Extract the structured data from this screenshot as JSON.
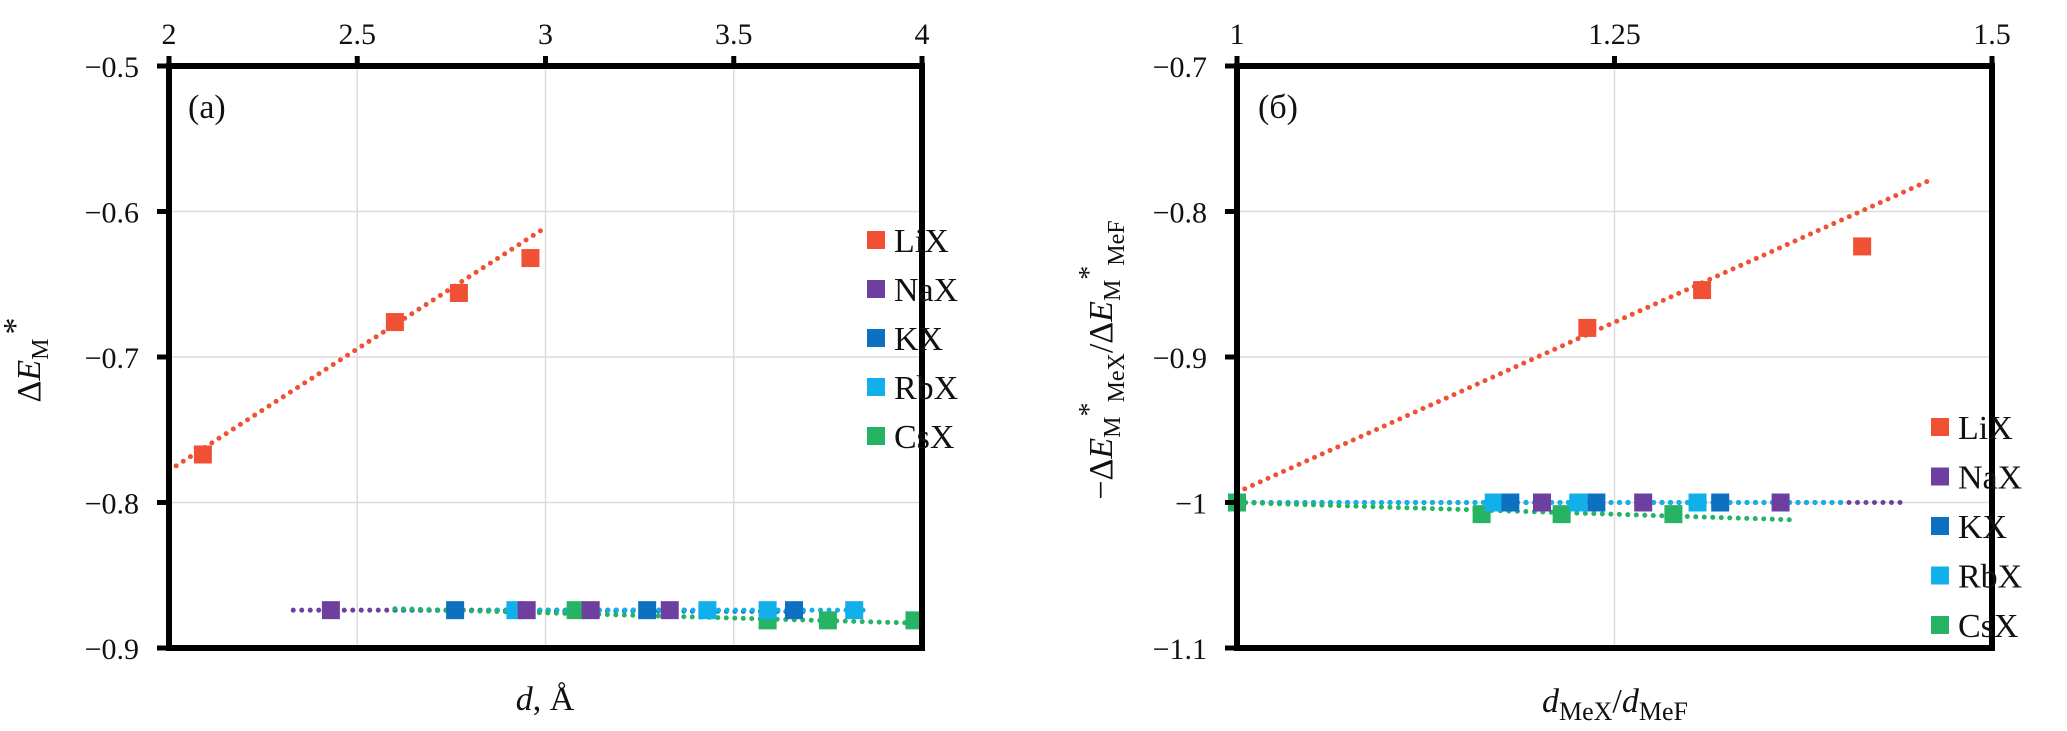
{
  "chart_data": [
    {
      "type": "scatter",
      "panel_label": "(a)",
      "title": "",
      "xlabel": "d, Å",
      "xlabel_italic_part": "d",
      "xlabel_rest": ", Å",
      "ylabel": "ΔE_M*",
      "ylabel_parts": {
        "delta": "Δ",
        "E": "E",
        "sub": "M",
        "sup": "*"
      },
      "xlim": [
        2,
        4
      ],
      "ylim": [
        -0.9,
        -0.5
      ],
      "x_ticks": [
        2,
        2.5,
        3,
        3.5,
        4
      ],
      "x_tick_labels": [
        "2",
        "2.5",
        "3",
        "3.5",
        "4"
      ],
      "x_axis_position": "top",
      "y_ticks": [
        -0.5,
        -0.6,
        -0.7,
        -0.8,
        -0.9
      ],
      "y_tick_labels": [
        "−0.5",
        "−0.6",
        "−0.7",
        "−0.8",
        "−0.9"
      ],
      "grid": true,
      "legend_position": "right",
      "series": [
        {
          "name": "LiX",
          "color": "#F05033",
          "x": [
            2.09,
            2.6,
            2.77,
            2.96
          ],
          "y": [
            -0.767,
            -0.676,
            -0.656,
            -0.632
          ],
          "trend": {
            "x": [
              2.0,
              3.0
            ],
            "y": [
              -0.778,
              -0.611
            ]
          }
        },
        {
          "name": "NaX",
          "color": "#6F3FA0",
          "x": [
            2.43,
            2.95,
            3.12,
            3.33
          ],
          "y": [
            -0.874,
            -0.874,
            -0.874,
            -0.874
          ],
          "trend": {
            "x": [
              2.33,
              3.37
            ],
            "y": [
              -0.874,
              -0.874
            ]
          }
        },
        {
          "name": "KX",
          "color": "#0E70C0",
          "x": [
            2.76,
            3.27,
            3.66
          ],
          "y": [
            -0.874,
            -0.874,
            -0.874
          ],
          "trend": {
            "x": [
              2.6,
              3.7
            ],
            "y": [
              -0.874,
              -0.875
            ]
          }
        },
        {
          "name": "RbX",
          "color": "#12B0EB",
          "x": [
            2.92,
            3.43,
            3.59,
            3.82
          ],
          "y": [
            -0.874,
            -0.874,
            -0.874,
            -0.874
          ],
          "trend": {
            "x": [
              2.85,
              3.86
            ],
            "y": [
              -0.874,
              -0.874
            ]
          }
        },
        {
          "name": "CsX",
          "color": "#26B364",
          "x": [
            3.08,
            3.59,
            3.75,
            3.98
          ],
          "y": [
            -0.874,
            -0.881,
            -0.881,
            -0.881
          ],
          "trend": {
            "x": [
              2.6,
              4.0
            ],
            "y": [
              -0.873,
              -0.883
            ]
          }
        }
      ]
    },
    {
      "type": "scatter",
      "panel_label": "(б)",
      "title": "",
      "xlabel": "d_MeX/d_MeF",
      "xlabel_parts": {
        "d1": "d",
        "sub1": "MeX",
        "slash": "/",
        "d2": "d",
        "sub2": "MeF"
      },
      "ylabel": "−ΔE_M*_MeX/ΔE_M*_MeF",
      "ylabel_parts": {
        "minus": "−Δ",
        "E1": "E",
        "sub1": "M",
        "sup1": "*",
        "subsub1": "MeX",
        "slash": "/Δ",
        "E2": "E",
        "sub2": "M",
        "sup2": "*",
        "subsub2": "MeF"
      },
      "xlim": [
        1,
        1.5
      ],
      "ylim": [
        -1.1,
        -0.7
      ],
      "x_ticks": [
        1,
        1.25,
        1.5
      ],
      "x_tick_labels": [
        "1",
        "1.25",
        "1.5"
      ],
      "x_axis_position": "top",
      "y_ticks": [
        -0.7,
        -0.8,
        -0.9,
        -1.0,
        -1.1
      ],
      "y_tick_labels": [
        "−0.7",
        "−0.8",
        "−0.9",
        "−1",
        "−1.1"
      ],
      "grid": true,
      "legend_position": "bottom-right",
      "series": [
        {
          "name": "LiX",
          "color": "#F05033",
          "x": [
            1.232,
            1.308,
            1.414
          ],
          "y": [
            -0.88,
            -0.854,
            -0.824
          ],
          "trend": {
            "x": [
              1.0,
              1.46
            ],
            "y": [
              -0.993,
              -0.778
            ]
          }
        },
        {
          "name": "NaX",
          "color": "#6F3FA0",
          "x": [
            1.202,
            1.269,
            1.36
          ],
          "y": [
            -1.0,
            -1.0,
            -1.0
          ],
          "trend": {
            "x": [
              1.0,
              1.444
            ],
            "y": [
              -1.0,
              -1.0
            ]
          }
        },
        {
          "name": "KX",
          "color": "#0E70C0",
          "x": [
            1.181,
            1.238,
            1.32
          ],
          "y": [
            -1.0,
            -1.0,
            -1.0
          ],
          "trend": {
            "x": [
              1.0,
              1.4
            ],
            "y": [
              -1.0,
              -1.0
            ]
          }
        },
        {
          "name": "RbX",
          "color": "#12B0EB",
          "x": [
            1.17,
            1.226,
            1.305
          ],
          "y": [
            -1.0,
            -1.0,
            -1.0
          ],
          "trend": {
            "x": [
              1.0,
              1.4
            ],
            "y": [
              -1.0,
              -1.0
            ]
          }
        },
        {
          "name": "CsX",
          "color": "#26B364",
          "x": [
            1.0,
            1.162,
            1.215,
            1.289
          ],
          "y": [
            -1.0,
            -1.008,
            -1.008,
            -1.008
          ],
          "trend": {
            "x": [
              1.0,
              1.371
            ],
            "y": [
              -1.0,
              -1.012
            ]
          }
        }
      ]
    }
  ]
}
